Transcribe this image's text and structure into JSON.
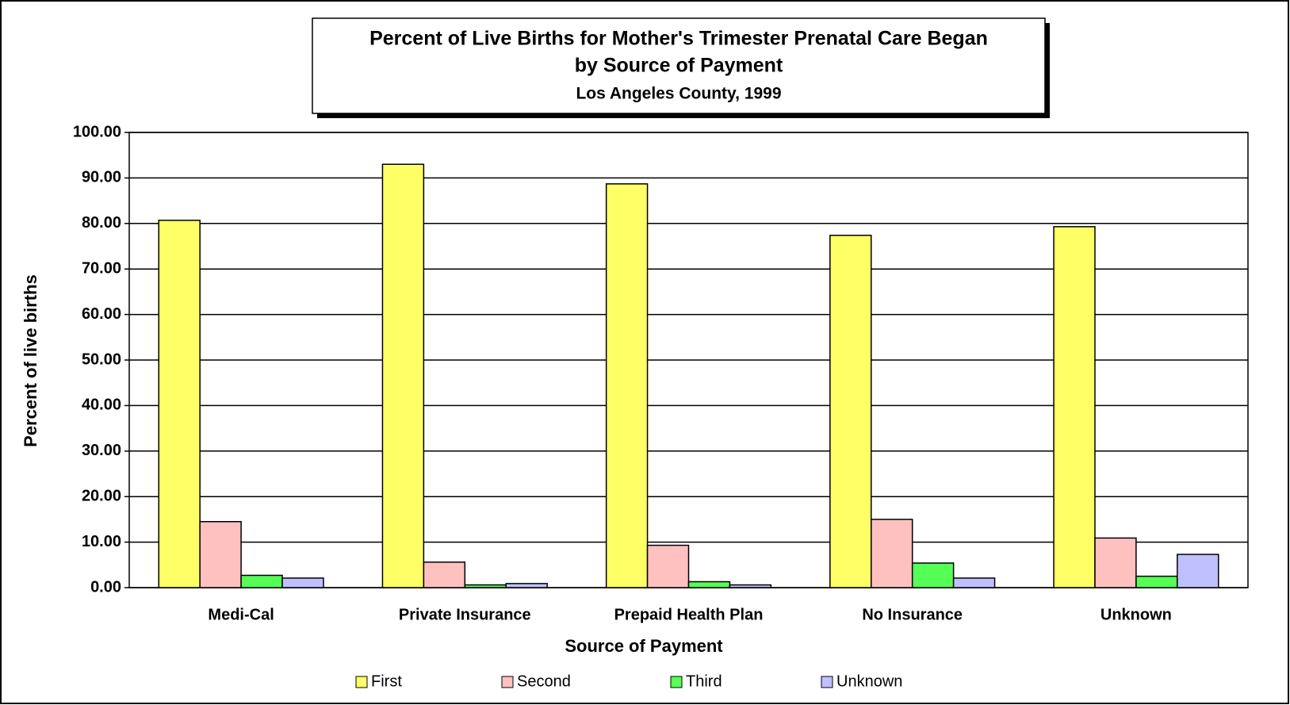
{
  "chart_data": {
    "type": "bar",
    "title": "Percent of Live Births for Mother's Trimester Prenatal Care Began",
    "subtitle": "by Source of Payment",
    "subtitle2": "Los Angeles County, 1999",
    "x_label": "Source of Payment",
    "y_label": "Percent of live births",
    "categories": [
      "Medi-Cal",
      "Private Insurance",
      "Prepaid Health Plan",
      "No Insurance",
      "Unknown"
    ],
    "series": [
      {
        "name": "First",
        "color": "#ffff66",
        "values": [
          80.7,
          93.0,
          88.7,
          77.4,
          79.3
        ]
      },
      {
        "name": "Second",
        "color": "#ffc0c0",
        "values": [
          14.5,
          5.6,
          9.3,
          15.0,
          10.9
        ]
      },
      {
        "name": "Third",
        "color": "#55ff55",
        "values": [
          2.7,
          0.6,
          1.3,
          5.4,
          2.5
        ]
      },
      {
        "name": "Unknown",
        "color": "#c0c0ff",
        "values": [
          2.1,
          0.9,
          0.6,
          2.1,
          7.3
        ]
      }
    ],
    "ylim": [
      0,
      100
    ],
    "yticks": [
      {
        "value": 0,
        "label": "0.00"
      },
      {
        "value": 10,
        "label": "10.00"
      },
      {
        "value": 20,
        "label": "20.00"
      },
      {
        "value": 30,
        "label": "30.00"
      },
      {
        "value": 40,
        "label": "40.00"
      },
      {
        "value": 50,
        "label": "50.00"
      },
      {
        "value": 60,
        "label": "60.00"
      },
      {
        "value": 70,
        "label": "70.00"
      },
      {
        "value": 80,
        "label": "80.00"
      },
      {
        "value": 90,
        "label": "90.00"
      },
      {
        "value": 100,
        "label": "100.00"
      }
    ],
    "grid": true,
    "legend": "bottom"
  }
}
